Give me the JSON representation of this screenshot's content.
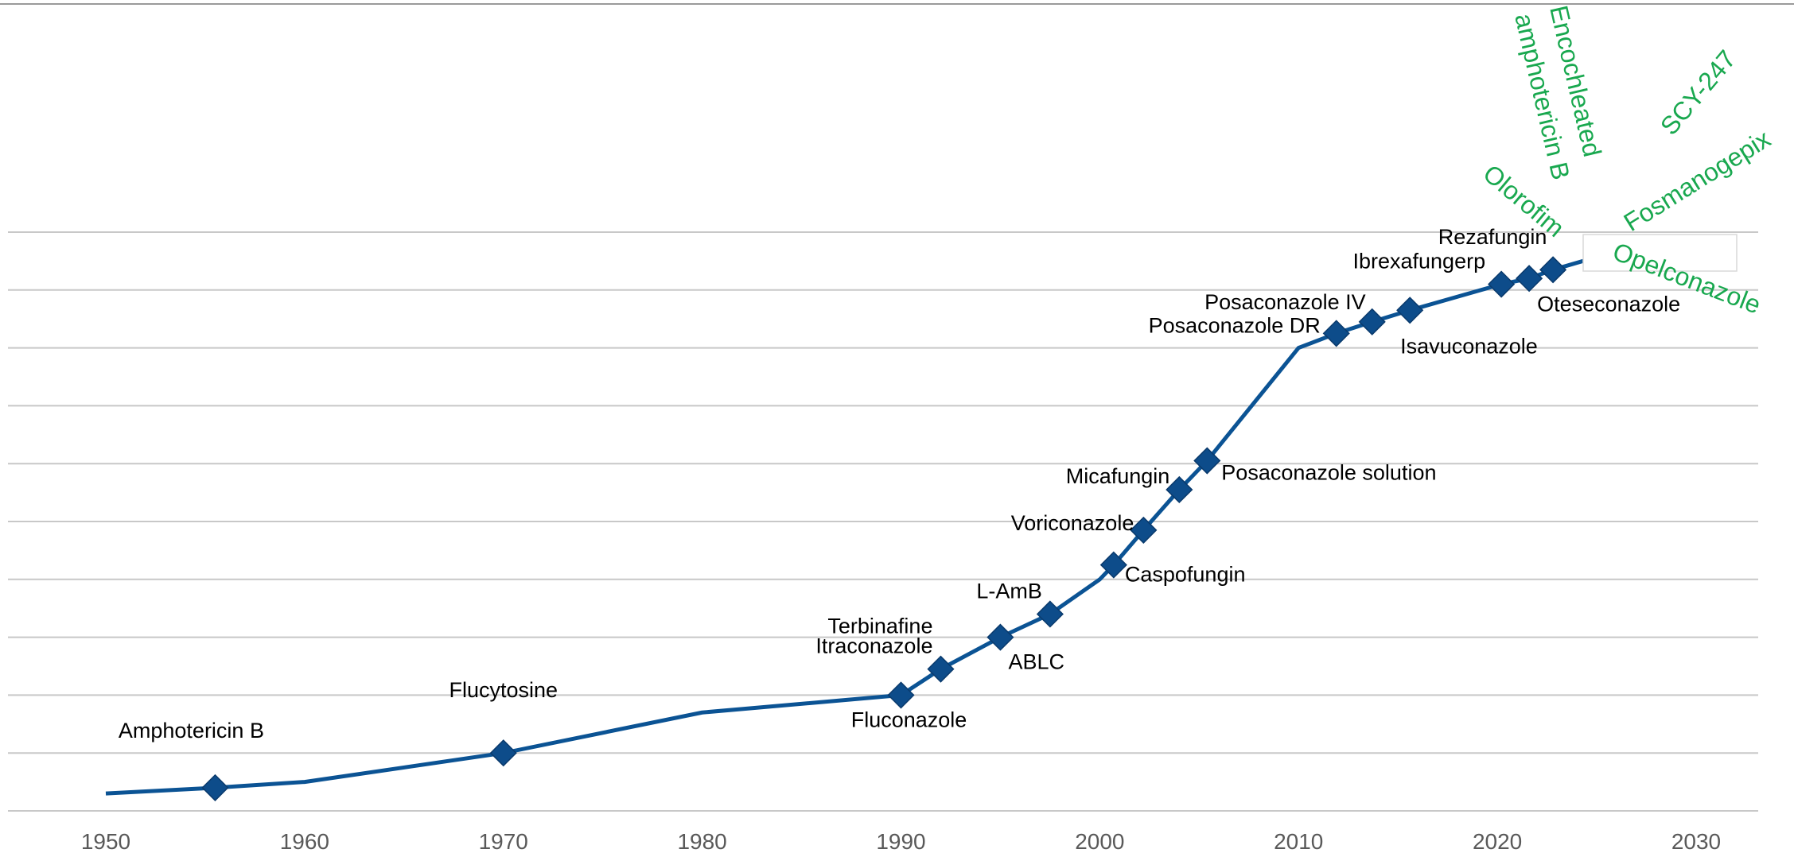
{
  "chart_data": {
    "type": "line",
    "title": "",
    "xlabel": "",
    "ylabel": "",
    "xlim": [
      1945,
      2034
    ],
    "ylim": [
      0,
      10
    ],
    "x_ticks": [
      "1950",
      "1960",
      "1970",
      "1980",
      "1990",
      "2000",
      "2010",
      "2020",
      "2030"
    ],
    "grid": true,
    "line_color": "#0b5394",
    "marker_color": "#0d4c8a",
    "pipeline_color": "#19a84f",
    "line_path": [
      {
        "x": 1950,
        "y": 0.3
      },
      {
        "x": 1955.5,
        "y": 0.4
      },
      {
        "x": 1960,
        "y": 0.5
      },
      {
        "x": 1970,
        "y": 1.0
      },
      {
        "x": 1980,
        "y": 1.7
      },
      {
        "x": 1990,
        "y": 2.0
      },
      {
        "x": 1992,
        "y": 2.45
      },
      {
        "x": 1995,
        "y": 3.0
      },
      {
        "x": 1997.5,
        "y": 3.4
      },
      {
        "x": 2000,
        "y": 4.0
      },
      {
        "x": 2000.7,
        "y": 4.25
      },
      {
        "x": 2002.2,
        "y": 4.85
      },
      {
        "x": 2004,
        "y": 5.55
      },
      {
        "x": 2005.4,
        "y": 6.05
      },
      {
        "x": 2010,
        "y": 8.0
      },
      {
        "x": 2011.9,
        "y": 8.25
      },
      {
        "x": 2013.7,
        "y": 8.45
      },
      {
        "x": 2015.6,
        "y": 8.65
      },
      {
        "x": 2020.2,
        "y": 9.1
      },
      {
        "x": 2021.6,
        "y": 9.2
      },
      {
        "x": 2022.8,
        "y": 9.35
      },
      {
        "x": 2026.3,
        "y": 9.7
      }
    ],
    "approved_drugs": [
      {
        "label": "Amphotericin B",
        "x": 1955.5,
        "y": 0.4
      },
      {
        "label": "Flucytosine",
        "x": 1970,
        "y": 1.0
      },
      {
        "label": "Fluconazole",
        "x": 1990,
        "y": 2.0
      },
      {
        "label": "Itraconazole",
        "x": 1992,
        "y": 2.45
      },
      {
        "label": "Terbinafine",
        "x": 1992,
        "y": 2.45
      },
      {
        "label": "ABLC",
        "x": 1995,
        "y": 3.0
      },
      {
        "label": "L-AmB",
        "x": 1997.5,
        "y": 3.4
      },
      {
        "label": "Caspofungin",
        "x": 2000.7,
        "y": 4.25
      },
      {
        "label": "Voriconazole",
        "x": 2002.2,
        "y": 4.85
      },
      {
        "label": "Micafungin",
        "x": 2004,
        "y": 5.55
      },
      {
        "label": "Posaconazole solution",
        "x": 2005.4,
        "y": 6.05
      },
      {
        "label": "Posaconazole DR",
        "x": 2011.9,
        "y": 8.25
      },
      {
        "label": "Posaconazole IV",
        "x": 2013.7,
        "y": 8.45
      },
      {
        "label": "Isavuconazole",
        "x": 2015.6,
        "y": 8.65
      },
      {
        "label": "Ibrexafungerp",
        "x": 2020.2,
        "y": 9.1
      },
      {
        "label": "Rezafungin",
        "x": 2021.6,
        "y": 9.2
      },
      {
        "label": "Oteseconazole",
        "x": 2022.8,
        "y": 9.35
      }
    ],
    "pipeline_drugs": [
      {
        "label": "Olorofim"
      },
      {
        "label": "Encochleated"
      },
      {
        "label": "amphotericin B"
      },
      {
        "label": "SCY-247"
      },
      {
        "label": "Fosmanogepix"
      },
      {
        "label": "Opelconazole"
      }
    ]
  }
}
